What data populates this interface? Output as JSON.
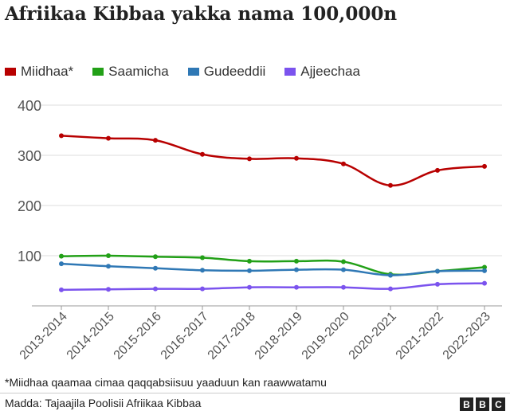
{
  "chart_data": {
    "type": "line",
    "title": "Afriikaa Kibbaa yakka nama 100,000n",
    "categories": [
      "2013-2014",
      "2014-2015",
      "2015-2016",
      "2016-2017",
      "2017-2018",
      "2018-2019",
      "2019-2020",
      "2020-2021",
      "2021-2022",
      "2022-2023"
    ],
    "ylim": [
      0,
      400
    ],
    "yticks": [
      100,
      200,
      300,
      400
    ],
    "grid": true,
    "legend_placement": "top",
    "series": [
      {
        "name": "Miidhaa*",
        "color": "#b80000",
        "values": [
          339,
          334,
          330,
          302,
          293,
          294,
          283,
          240,
          270,
          278
        ]
      },
      {
        "name": "Saamicha",
        "color": "#22a017",
        "values": [
          99,
          100,
          98,
          96,
          89,
          89,
          88,
          63,
          69,
          77
        ]
      },
      {
        "name": "Gudeeddii",
        "color": "#2f78b5",
        "values": [
          84,
          79,
          75,
          71,
          70,
          72,
          72,
          61,
          69,
          70
        ]
      },
      {
        "name": "Ajjeechaa",
        "color": "#7b53ee",
        "values": [
          32,
          33,
          34,
          34,
          37,
          37,
          37,
          34,
          43,
          45
        ]
      }
    ]
  },
  "footer": {
    "note": "*Miidhaa qaamaa cimaa qaqqabsiisuu yaaduun kan raawwatamu",
    "source": "Madda: Tajaajila Poolisii Afriikaa Kibbaa",
    "logo": [
      "B",
      "B",
      "C"
    ]
  }
}
